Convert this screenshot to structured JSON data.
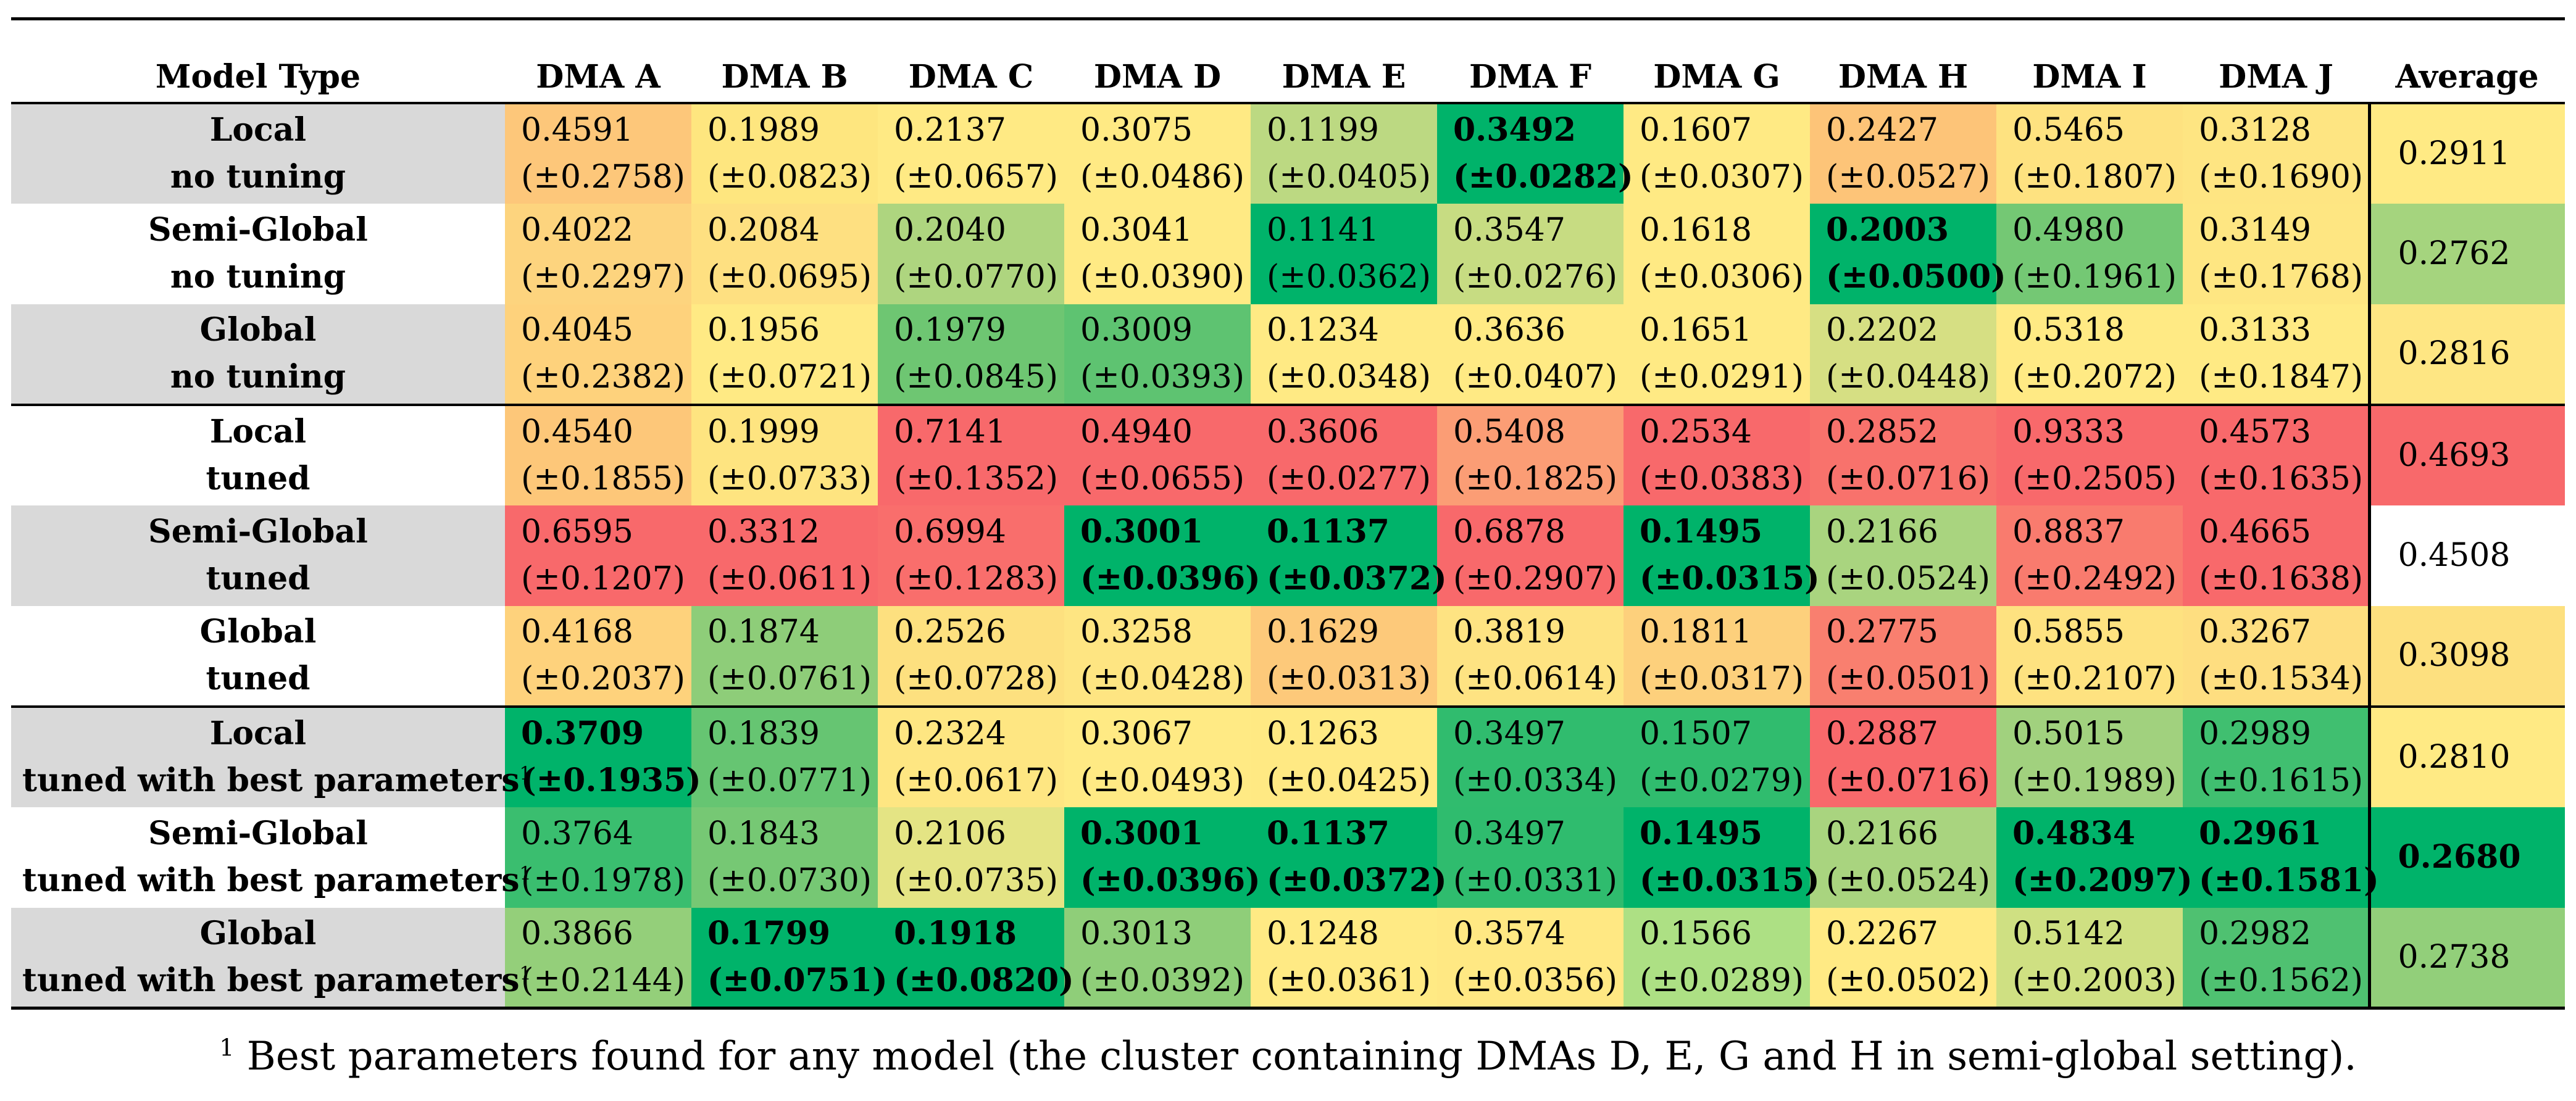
{
  "table": {
    "header": {
      "model_type": "Model Type",
      "columns": [
        "DMA A",
        "DMA B",
        "DMA C",
        "DMA D",
        "DMA E",
        "DMA F",
        "DMA G",
        "DMA H",
        "DMA I",
        "DMA J"
      ],
      "average": "Average"
    },
    "superscript": "1",
    "rows": [
      {
        "model": "Local",
        "setting": "no tuning",
        "shade": "gray",
        "footnote": false,
        "cells": [
          {
            "v": "0.4591",
            "sd": "(±0.2758)",
            "c": "#fdc77a",
            "b": false
          },
          {
            "v": "0.1989",
            "sd": "(±0.0823)",
            "c": "#fee67f",
            "b": false
          },
          {
            "v": "0.2137",
            "sd": "(±0.0657)",
            "c": "#ffea84",
            "b": false
          },
          {
            "v": "0.3075",
            "sd": "(±0.0486)",
            "c": "#ffea84",
            "b": false
          },
          {
            "v": "0.1199",
            "sd": "(±0.0405)",
            "c": "#bcd982",
            "b": false
          },
          {
            "v": "0.3492",
            "sd": "(±0.0282)",
            "c": "#00b36a",
            "b": true
          },
          {
            "v": "0.1607",
            "sd": "(±0.0307)",
            "c": "#ffea84",
            "b": false
          },
          {
            "v": "0.2427",
            "sd": "(±0.0527)",
            "c": "#fdc478",
            "b": false
          },
          {
            "v": "0.5465",
            "sd": "(±0.1807)",
            "c": "#fee280",
            "b": false
          },
          {
            "v": "0.3128",
            "sd": "(±0.1690)",
            "c": "#fee582",
            "b": false
          }
        ],
        "avg": {
          "v": "0.2911",
          "c": "#ffea84",
          "b": false
        }
      },
      {
        "model": "Semi-Global",
        "setting": "no tuning",
        "shade": "white",
        "footnote": false,
        "cells": [
          {
            "v": "0.4022",
            "sd": "(±0.2297)",
            "c": "#fdd47e",
            "b": false
          },
          {
            "v": "0.2084",
            "sd": "(±0.0695)",
            "c": "#fee081",
            "b": false
          },
          {
            "v": "0.2040",
            "sd": "(±0.0770)",
            "c": "#aed57f",
            "b": false
          },
          {
            "v": "0.3041",
            "sd": "(±0.0390)",
            "c": "#ffea84",
            "b": false
          },
          {
            "v": "0.1141",
            "sd": "(±0.0362)",
            "c": "#00b36a",
            "b": false
          },
          {
            "v": "0.3547",
            "sd": "(±0.0276)",
            "c": "#c7dc82",
            "b": false
          },
          {
            "v": "0.1618",
            "sd": "(±0.0306)",
            "c": "#ffea84",
            "b": false
          },
          {
            "v": "0.2003",
            "sd": "(±0.0500)",
            "c": "#00b36a",
            "b": true
          },
          {
            "v": "0.4980",
            "sd": "(±0.1961)",
            "c": "#74c874",
            "b": false
          },
          {
            "v": "0.3149",
            "sd": "(±0.1768)",
            "c": "#fee682",
            "b": false
          }
        ],
        "avg": {
          "v": "0.2762",
          "c": "#a5d47e",
          "b": false
        }
      },
      {
        "model": "Global",
        "setting": "no tuning",
        "shade": "gray",
        "footnote": false,
        "cells": [
          {
            "v": "0.4045",
            "sd": "(±0.2382)",
            "c": "#fed27c",
            "b": false
          },
          {
            "v": "0.1956",
            "sd": "(±0.0721)",
            "c": "#ffea84",
            "b": false
          },
          {
            "v": "0.1979",
            "sd": "(±0.0845)",
            "c": "#6ec672",
            "b": false
          },
          {
            "v": "0.3009",
            "sd": "(±0.0393)",
            "c": "#5ec371",
            "b": false
          },
          {
            "v": "0.1234",
            "sd": "(±0.0348)",
            "c": "#ffea84",
            "b": false
          },
          {
            "v": "0.3636",
            "sd": "(±0.0407)",
            "c": "#ffea84",
            "b": false
          },
          {
            "v": "0.1651",
            "sd": "(±0.0291)",
            "c": "#ffea84",
            "b": false
          },
          {
            "v": "0.2202",
            "sd": "(±0.0448)",
            "c": "#d6df83",
            "b": false
          },
          {
            "v": "0.5318",
            "sd": "(±0.2072)",
            "c": "#ffea84",
            "b": false
          },
          {
            "v": "0.3133",
            "sd": "(±0.1847)",
            "c": "#ffea84",
            "b": false
          }
        ],
        "avg": {
          "v": "0.2816",
          "c": "#fee683",
          "b": false
        }
      },
      {
        "model": "Local",
        "setting": "tuned",
        "shade": "white",
        "footnote": false,
        "cells": [
          {
            "v": "0.4540",
            "sd": "(±0.1855)",
            "c": "#fdc779",
            "b": false
          },
          {
            "v": "0.1999",
            "sd": "(±0.0733)",
            "c": "#fee480",
            "b": false
          },
          {
            "v": "0.7141",
            "sd": "(±0.1352)",
            "c": "#f8696b",
            "b": false
          },
          {
            "v": "0.4940",
            "sd": "(±0.0655)",
            "c": "#f8696b",
            "b": false
          },
          {
            "v": "0.3606",
            "sd": "(±0.0277)",
            "c": "#f8696b",
            "b": false
          },
          {
            "v": "0.5408",
            "sd": "(±0.1825)",
            "c": "#fb9d75",
            "b": false
          },
          {
            "v": "0.2534",
            "sd": "(±0.0383)",
            "c": "#f8696b",
            "b": false
          },
          {
            "v": "0.2852",
            "sd": "(±0.0716)",
            "c": "#f8726c",
            "b": false
          },
          {
            "v": "0.9333",
            "sd": "(±0.2505)",
            "c": "#f8696b",
            "b": false
          },
          {
            "v": "0.4573",
            "sd": "(±0.1635)",
            "c": "#f8696b",
            "b": false
          }
        ],
        "avg": {
          "v": "0.4693",
          "c": "#f8696b",
          "b": false
        }
      },
      {
        "model": "Semi-Global",
        "setting": "tuned",
        "shade": "gray",
        "footnote": false,
        "cells": [
          {
            "v": "0.6595",
            "sd": "(±0.1207)",
            "c": "#f8696b",
            "b": false
          },
          {
            "v": "0.3312",
            "sd": "(±0.0611)",
            "c": "#f8696b",
            "b": false
          },
          {
            "v": "0.6994",
            "sd": "(±0.1283)",
            "c": "#f96e6c",
            "b": false
          },
          {
            "v": "0.3001",
            "sd": "(±0.0396)",
            "c": "#00b36a",
            "b": true
          },
          {
            "v": "0.1137",
            "sd": "(±0.0372)",
            "c": "#00b36a",
            "b": true
          },
          {
            "v": "0.6878",
            "sd": "(±0.2907)",
            "c": "#f8696b",
            "b": false
          },
          {
            "v": "0.1495",
            "sd": "(±0.0315)",
            "c": "#00b36a",
            "b": true
          },
          {
            "v": "0.2166",
            "sd": "(±0.0524)",
            "c": "#a9d47f",
            "b": false
          },
          {
            "v": "0.8837",
            "sd": "(±0.2492)",
            "c": "#f97b6e",
            "b": false
          },
          {
            "v": "0.4665",
            "sd": "(±0.1638)",
            "c": "#f8696b",
            "b": false
          }
        ],
        "avg": {
          "v": "0.4508",
          "c": "#ffffff",
          "b": false
        }
      },
      {
        "model": "Global",
        "setting": "tuned",
        "shade": "white",
        "footnote": false,
        "cells": [
          {
            "v": "0.4168",
            "sd": "(±0.2037)",
            "c": "#fed27c",
            "b": false
          },
          {
            "v": "0.1874",
            "sd": "(±0.0761)",
            "c": "#8ecd79",
            "b": false
          },
          {
            "v": "0.2526",
            "sd": "(±0.0728)",
            "c": "#fde07f",
            "b": false
          },
          {
            "v": "0.3258",
            "sd": "(±0.0428)",
            "c": "#fee582",
            "b": false
          },
          {
            "v": "0.1629",
            "sd": "(±0.0313)",
            "c": "#fdc97a",
            "b": false
          },
          {
            "v": "0.3819",
            "sd": "(±0.0614)",
            "c": "#fee382",
            "b": false
          },
          {
            "v": "0.1811",
            "sd": "(±0.0317)",
            "c": "#fdd07c",
            "b": false
          },
          {
            "v": "0.2775",
            "sd": "(±0.0501)",
            "c": "#f97f6f",
            "b": false
          },
          {
            "v": "0.5855",
            "sd": "(±0.2107)",
            "c": "#fee280",
            "b": false
          },
          {
            "v": "0.3267",
            "sd": "(±0.1534)",
            "c": "#fede80",
            "b": false
          }
        ],
        "avg": {
          "v": "0.3098",
          "c": "#fde07f",
          "b": false
        }
      },
      {
        "model": "Local",
        "setting": "tuned with best parameters",
        "shade": "gray",
        "footnote": true,
        "cells": [
          {
            "v": "0.3709",
            "sd": "(±0.1935)",
            "c": "#00b36a",
            "b": true
          },
          {
            "v": "0.1839",
            "sd": "(±0.0771)",
            "c": "#66c572",
            "b": false
          },
          {
            "v": "0.2324",
            "sd": "(±0.0617)",
            "c": "#fee682",
            "b": false
          },
          {
            "v": "0.3067",
            "sd": "(±0.0493)",
            "c": "#ffea84",
            "b": false
          },
          {
            "v": "0.1263",
            "sd": "(±0.0425)",
            "c": "#ffe983",
            "b": false
          },
          {
            "v": "0.3497",
            "sd": "(±0.0334)",
            "c": "#30bc6e",
            "b": false
          },
          {
            "v": "0.1507",
            "sd": "(±0.0279)",
            "c": "#30bc6e",
            "b": false
          },
          {
            "v": "0.2887",
            "sd": "(±0.0716)",
            "c": "#f8696b",
            "b": false
          },
          {
            "v": "0.5015",
            "sd": "(±0.1989)",
            "c": "#a1d17e",
            "b": false
          },
          {
            "v": "0.2989",
            "sd": "(±0.1615)",
            "c": "#40bf70",
            "b": false
          }
        ],
        "avg": {
          "v": "0.2810",
          "c": "#ffea84",
          "b": false
        }
      },
      {
        "model": "Semi-Global",
        "setting": "tuned with best parameters",
        "shade": "white",
        "footnote": true,
        "cells": [
          {
            "v": "0.3764",
            "sd": "(±0.1978)",
            "c": "#3abe6f",
            "b": false
          },
          {
            "v": "0.1843",
            "sd": "(±0.0730)",
            "c": "#76c874",
            "b": false
          },
          {
            "v": "0.2106",
            "sd": "(±0.0735)",
            "c": "#e4e484",
            "b": false
          },
          {
            "v": "0.3001",
            "sd": "(±0.0396)",
            "c": "#00b36a",
            "b": true
          },
          {
            "v": "0.1137",
            "sd": "(±0.0372)",
            "c": "#00b36a",
            "b": true
          },
          {
            "v": "0.3497",
            "sd": "(±0.0331)",
            "c": "#2fbc6e",
            "b": false
          },
          {
            "v": "0.1495",
            "sd": "(±0.0315)",
            "c": "#00b36a",
            "b": true
          },
          {
            "v": "0.2166",
            "sd": "(±0.0524)",
            "c": "#a9d47f",
            "b": false
          },
          {
            "v": "0.4834",
            "sd": "(±0.2097)",
            "c": "#00b36a",
            "b": true
          },
          {
            "v": "0.2961",
            "sd": "(±0.1581)",
            "c": "#00b36a",
            "b": true
          }
        ],
        "avg": {
          "v": "0.2680",
          "c": "#00b36a",
          "b": true
        }
      },
      {
        "model": "Global",
        "setting": "tuned with best parameters",
        "shade": "gray",
        "footnote": true,
        "cells": [
          {
            "v": "0.3866",
            "sd": "(±0.2144)",
            "c": "#94cf7a",
            "b": false
          },
          {
            "v": "0.1799",
            "sd": "(±0.0751)",
            "c": "#00b36a",
            "b": true
          },
          {
            "v": "0.1918",
            "sd": "(±0.0820)",
            "c": "#00b36a",
            "b": true
          },
          {
            "v": "0.3013",
            "sd": "(±0.0392)",
            "c": "#8fce79",
            "b": false
          },
          {
            "v": "0.1248",
            "sd": "(±0.0361)",
            "c": "#ffea84",
            "b": false
          },
          {
            "v": "0.3574",
            "sd": "(±0.0356)",
            "c": "#ffe883",
            "b": false
          },
          {
            "v": "0.1566",
            "sd": "(±0.0289)",
            "c": "#ade084",
            "b": false
          },
          {
            "v": "0.2267",
            "sd": "(±0.0502)",
            "c": "#ffea84",
            "b": false
          },
          {
            "v": "0.5142",
            "sd": "(±0.2003)",
            "c": "#cfe082",
            "b": false
          },
          {
            "v": "0.2982",
            "sd": "(±0.1562)",
            "c": "#4fc171",
            "b": false
          }
        ],
        "avg": {
          "v": "0.2738",
          "c": "#92cf7a",
          "b": false
        }
      }
    ]
  },
  "footnote": {
    "marker": "1",
    "text": "Best parameters found for any model (the cluster containing DMAs D, E, G and H in semi-global setting)."
  }
}
